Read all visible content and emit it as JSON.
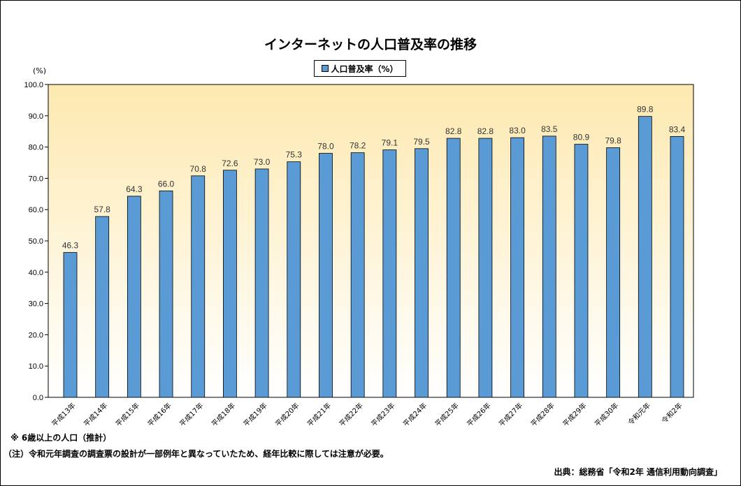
{
  "chart_data": {
    "type": "bar",
    "title": "インターネットの人口普及率の推移",
    "ylabel": "(%)",
    "ylim": [
      0,
      100
    ],
    "yticks": [
      "0.0",
      "10.0",
      "20.0",
      "30.0",
      "40.0",
      "50.0",
      "60.0",
      "70.0",
      "80.0",
      "90.0",
      "100.0"
    ],
    "categories": [
      "平成13年",
      "平成14年",
      "平成15年",
      "平成16年",
      "平成17年",
      "平成18年",
      "平成19年",
      "平成20年",
      "平成21年",
      "平成22年",
      "平成23年",
      "平成24年",
      "平成25年",
      "平成26年",
      "平成27年",
      "平成28年",
      "平成29年",
      "平成30年",
      "令和元年",
      "令和2年"
    ],
    "series": [
      {
        "name": "人口普及率（%）",
        "values": [
          46.3,
          57.8,
          64.3,
          66.0,
          70.8,
          72.6,
          73.0,
          75.3,
          78.0,
          78.2,
          79.1,
          79.5,
          82.8,
          82.8,
          83.0,
          83.5,
          80.9,
          79.8,
          89.8,
          83.4
        ]
      }
    ],
    "legend_placement": "top-center",
    "grid": false,
    "colors": {
      "bar": "#5b9bd5",
      "background_top": "#fde9b0",
      "background_bottom": "#ffffff"
    }
  },
  "notes": {
    "note1": "※ 6歳以上の人口（推計）",
    "note2": "（注）令和元年調査の調査票の設計が一部例年と異なっていたため、経年比較に際しては注意が必要。",
    "source": "出典：総務省「令和2年 通信利用動向調査」"
  }
}
